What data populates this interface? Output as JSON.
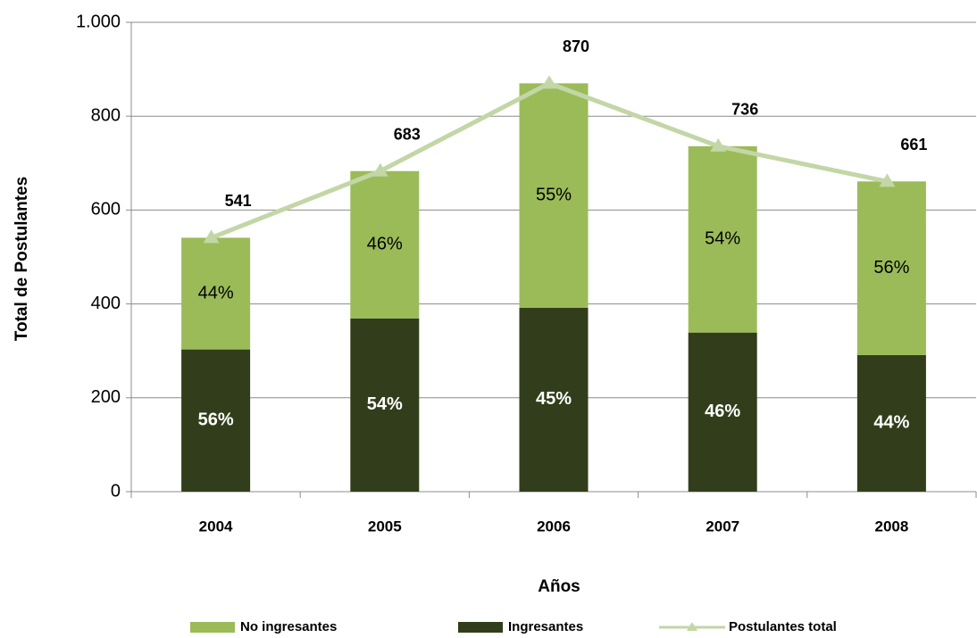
{
  "chart_data": {
    "type": "bar",
    "x_label": "Años",
    "y_label": "Total de Postulantes",
    "categories": [
      "2004",
      "2005",
      "2006",
      "2007",
      "2008"
    ],
    "series": [
      {
        "name": "No ingresantes",
        "type": "bar",
        "color": "#9bbb59",
        "values": [
          238,
          314,
          478,
          397,
          370
        ],
        "segment_labels": [
          "44%",
          "46%",
          "55%",
          "54%",
          "56%"
        ]
      },
      {
        "name": "Ingresantes",
        "type": "bar",
        "color": "#323e1b",
        "values": [
          303,
          369,
          392,
          339,
          291
        ],
        "segment_labels": [
          "56%",
          "54%",
          "45%",
          "46%",
          "44%"
        ]
      },
      {
        "name": "Postulantes total",
        "type": "line",
        "color": "#c3d6a6",
        "values": [
          541,
          683,
          870,
          736,
          661
        ]
      }
    ],
    "ylim": [
      0,
      1000
    ],
    "yticks": [
      0,
      200,
      400,
      600,
      800,
      {
        "value": 1000,
        "label": "1.000"
      }
    ],
    "grid": true,
    "legend": "bottom"
  }
}
